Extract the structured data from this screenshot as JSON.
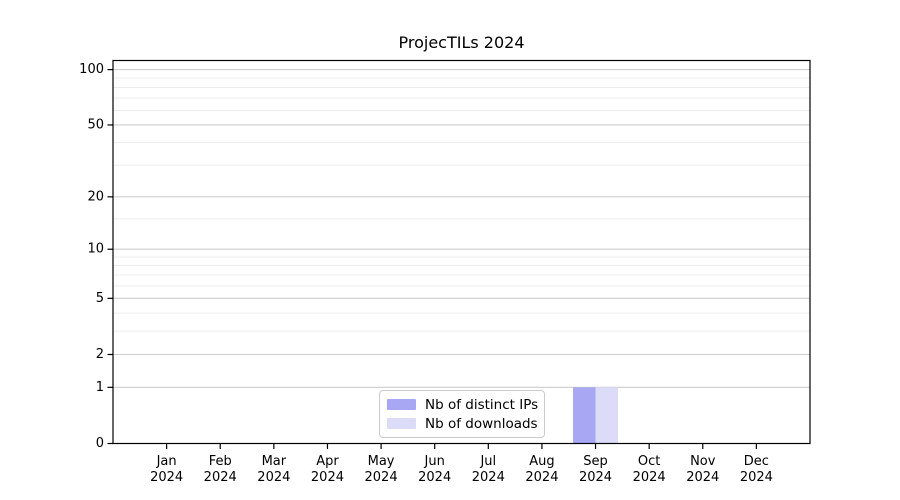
{
  "chart_data": {
    "type": "bar",
    "title": "ProjecTILs 2024",
    "categories": [
      "Jan 2024",
      "Feb 2024",
      "Mar 2024",
      "Apr 2024",
      "May 2024",
      "Jun 2024",
      "Jul 2024",
      "Aug 2024",
      "Sep 2024",
      "Oct 2024",
      "Nov 2024",
      "Dec 2024"
    ],
    "series": [
      {
        "name": "Nb of distinct IPs",
        "color": "#a7a7f4",
        "values": [
          0,
          0,
          0,
          0,
          0,
          0,
          0,
          0,
          1,
          0,
          0,
          0
        ]
      },
      {
        "name": "Nb of downloads",
        "color": "#dcdcf9",
        "values": [
          0,
          0,
          0,
          0,
          0,
          0,
          0,
          0,
          1,
          0,
          0,
          0
        ]
      }
    ],
    "yscale": "log1p",
    "ylim": [
      0,
      112
    ],
    "yticks": [
      0,
      1,
      2,
      5,
      10,
      20,
      50,
      100
    ],
    "minor_yticks": [
      3,
      4,
      6,
      7,
      8,
      9,
      15,
      30,
      40,
      60,
      70,
      80,
      90
    ],
    "grid": {
      "major_color": "#cdcdcd",
      "minor_color": "#ededed"
    },
    "axis_color": "#000000",
    "text_color": "#000000",
    "legend_position": "bottom-center"
  }
}
